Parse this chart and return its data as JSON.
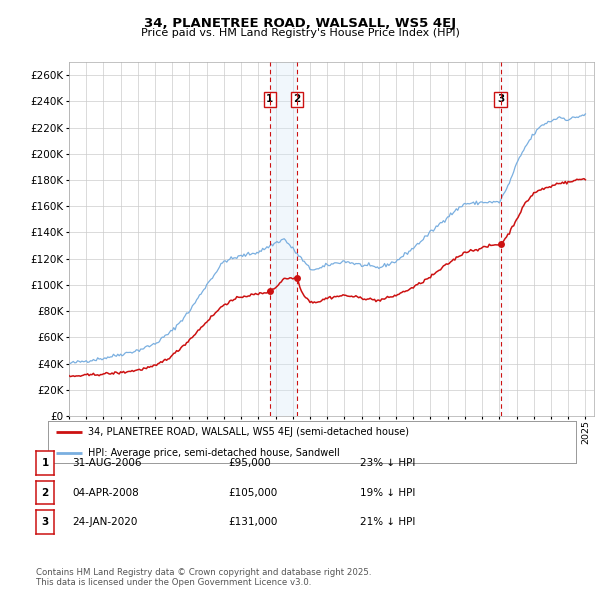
{
  "title_line1": "34, PLANETREE ROAD, WALSALL, WS5 4EJ",
  "title_line2": "Price paid vs. HM Land Registry's House Price Index (HPI)",
  "background_color": "#ffffff",
  "plot_bg_color": "#ffffff",
  "grid_color": "#cccccc",
  "hpi_color": "#7aafe0",
  "price_color": "#cc1111",
  "vline_color": "#cc1111",
  "shade_color": "#d8eaf8",
  "ylim": [
    0,
    270000
  ],
  "yticks": [
    0,
    20000,
    40000,
    60000,
    80000,
    100000,
    120000,
    140000,
    160000,
    180000,
    200000,
    220000,
    240000,
    260000
  ],
  "trans_years": {
    "1": 2006.667,
    "2": 2008.25,
    "3": 2020.08
  },
  "trans_prices": {
    "1": 95000,
    "2": 105000,
    "3": 131000
  },
  "legend_house_label": "34, PLANETREE ROAD, WALSALL, WS5 4EJ (semi-detached house)",
  "legend_hpi_label": "HPI: Average price, semi-detached house, Sandwell",
  "footnote": "Contains HM Land Registry data © Crown copyright and database right 2025.\nThis data is licensed under the Open Government Licence v3.0.",
  "table_rows": [
    {
      "num": "1",
      "date": "31-AUG-2006",
      "price": "£95,000",
      "hpi": "23% ↓ HPI"
    },
    {
      "num": "2",
      "date": "04-APR-2008",
      "price": "£105,000",
      "hpi": "19% ↓ HPI"
    },
    {
      "num": "3",
      "date": "24-JAN-2020",
      "price": "£131,000",
      "hpi": "21% ↓ HPI"
    }
  ],
  "hpi_waypoints_x": [
    1995.0,
    1996.0,
    1997.0,
    1998.0,
    1999.0,
    2000.0,
    2001.0,
    2002.0,
    2003.0,
    2004.0,
    2005.0,
    2006.0,
    2007.0,
    2007.5,
    2008.5,
    2009.0,
    2009.5,
    2010.0,
    2011.0,
    2012.0,
    2013.0,
    2014.0,
    2015.0,
    2016.0,
    2017.0,
    2018.0,
    2018.5,
    2019.0,
    2020.0,
    2020.5,
    2021.0,
    2021.5,
    2022.0,
    2022.5,
    2023.0,
    2023.5,
    2024.0,
    2024.5,
    2025.0
  ],
  "hpi_waypoints_y": [
    40000,
    42000,
    44000,
    47000,
    50000,
    55000,
    65000,
    80000,
    100000,
    118000,
    122000,
    125000,
    132000,
    135000,
    120000,
    112000,
    112000,
    115000,
    118000,
    115000,
    113000,
    118000,
    128000,
    140000,
    152000,
    162000,
    162000,
    163000,
    163000,
    175000,
    192000,
    205000,
    215000,
    222000,
    225000,
    228000,
    226000,
    228000,
    230000
  ],
  "price_waypoints_x": [
    1995.0,
    1996.0,
    1997.0,
    1998.0,
    1999.0,
    2000.0,
    2001.0,
    2002.0,
    2003.0,
    2004.0,
    2005.0,
    2006.0,
    2006.667,
    2007.0,
    2007.5,
    2008.25,
    2008.5,
    2009.0,
    2009.5,
    2010.0,
    2011.0,
    2012.0,
    2013.0,
    2014.0,
    2015.0,
    2016.0,
    2017.0,
    2018.0,
    2019.0,
    2019.5,
    2020.08,
    2020.5,
    2021.0,
    2021.5,
    2022.0,
    2022.5,
    2023.0,
    2023.5,
    2024.0,
    2024.5,
    2025.0
  ],
  "price_waypoints_y": [
    30000,
    31000,
    32000,
    33000,
    35000,
    38000,
    46000,
    58000,
    72000,
    85000,
    91000,
    93000,
    95000,
    98000,
    105000,
    105000,
    95000,
    87000,
    87000,
    90000,
    92000,
    90000,
    88000,
    92000,
    98000,
    106000,
    116000,
    125000,
    128000,
    130000,
    131000,
    138000,
    150000,
    162000,
    170000,
    173000,
    175000,
    178000,
    178000,
    180000,
    181000
  ]
}
